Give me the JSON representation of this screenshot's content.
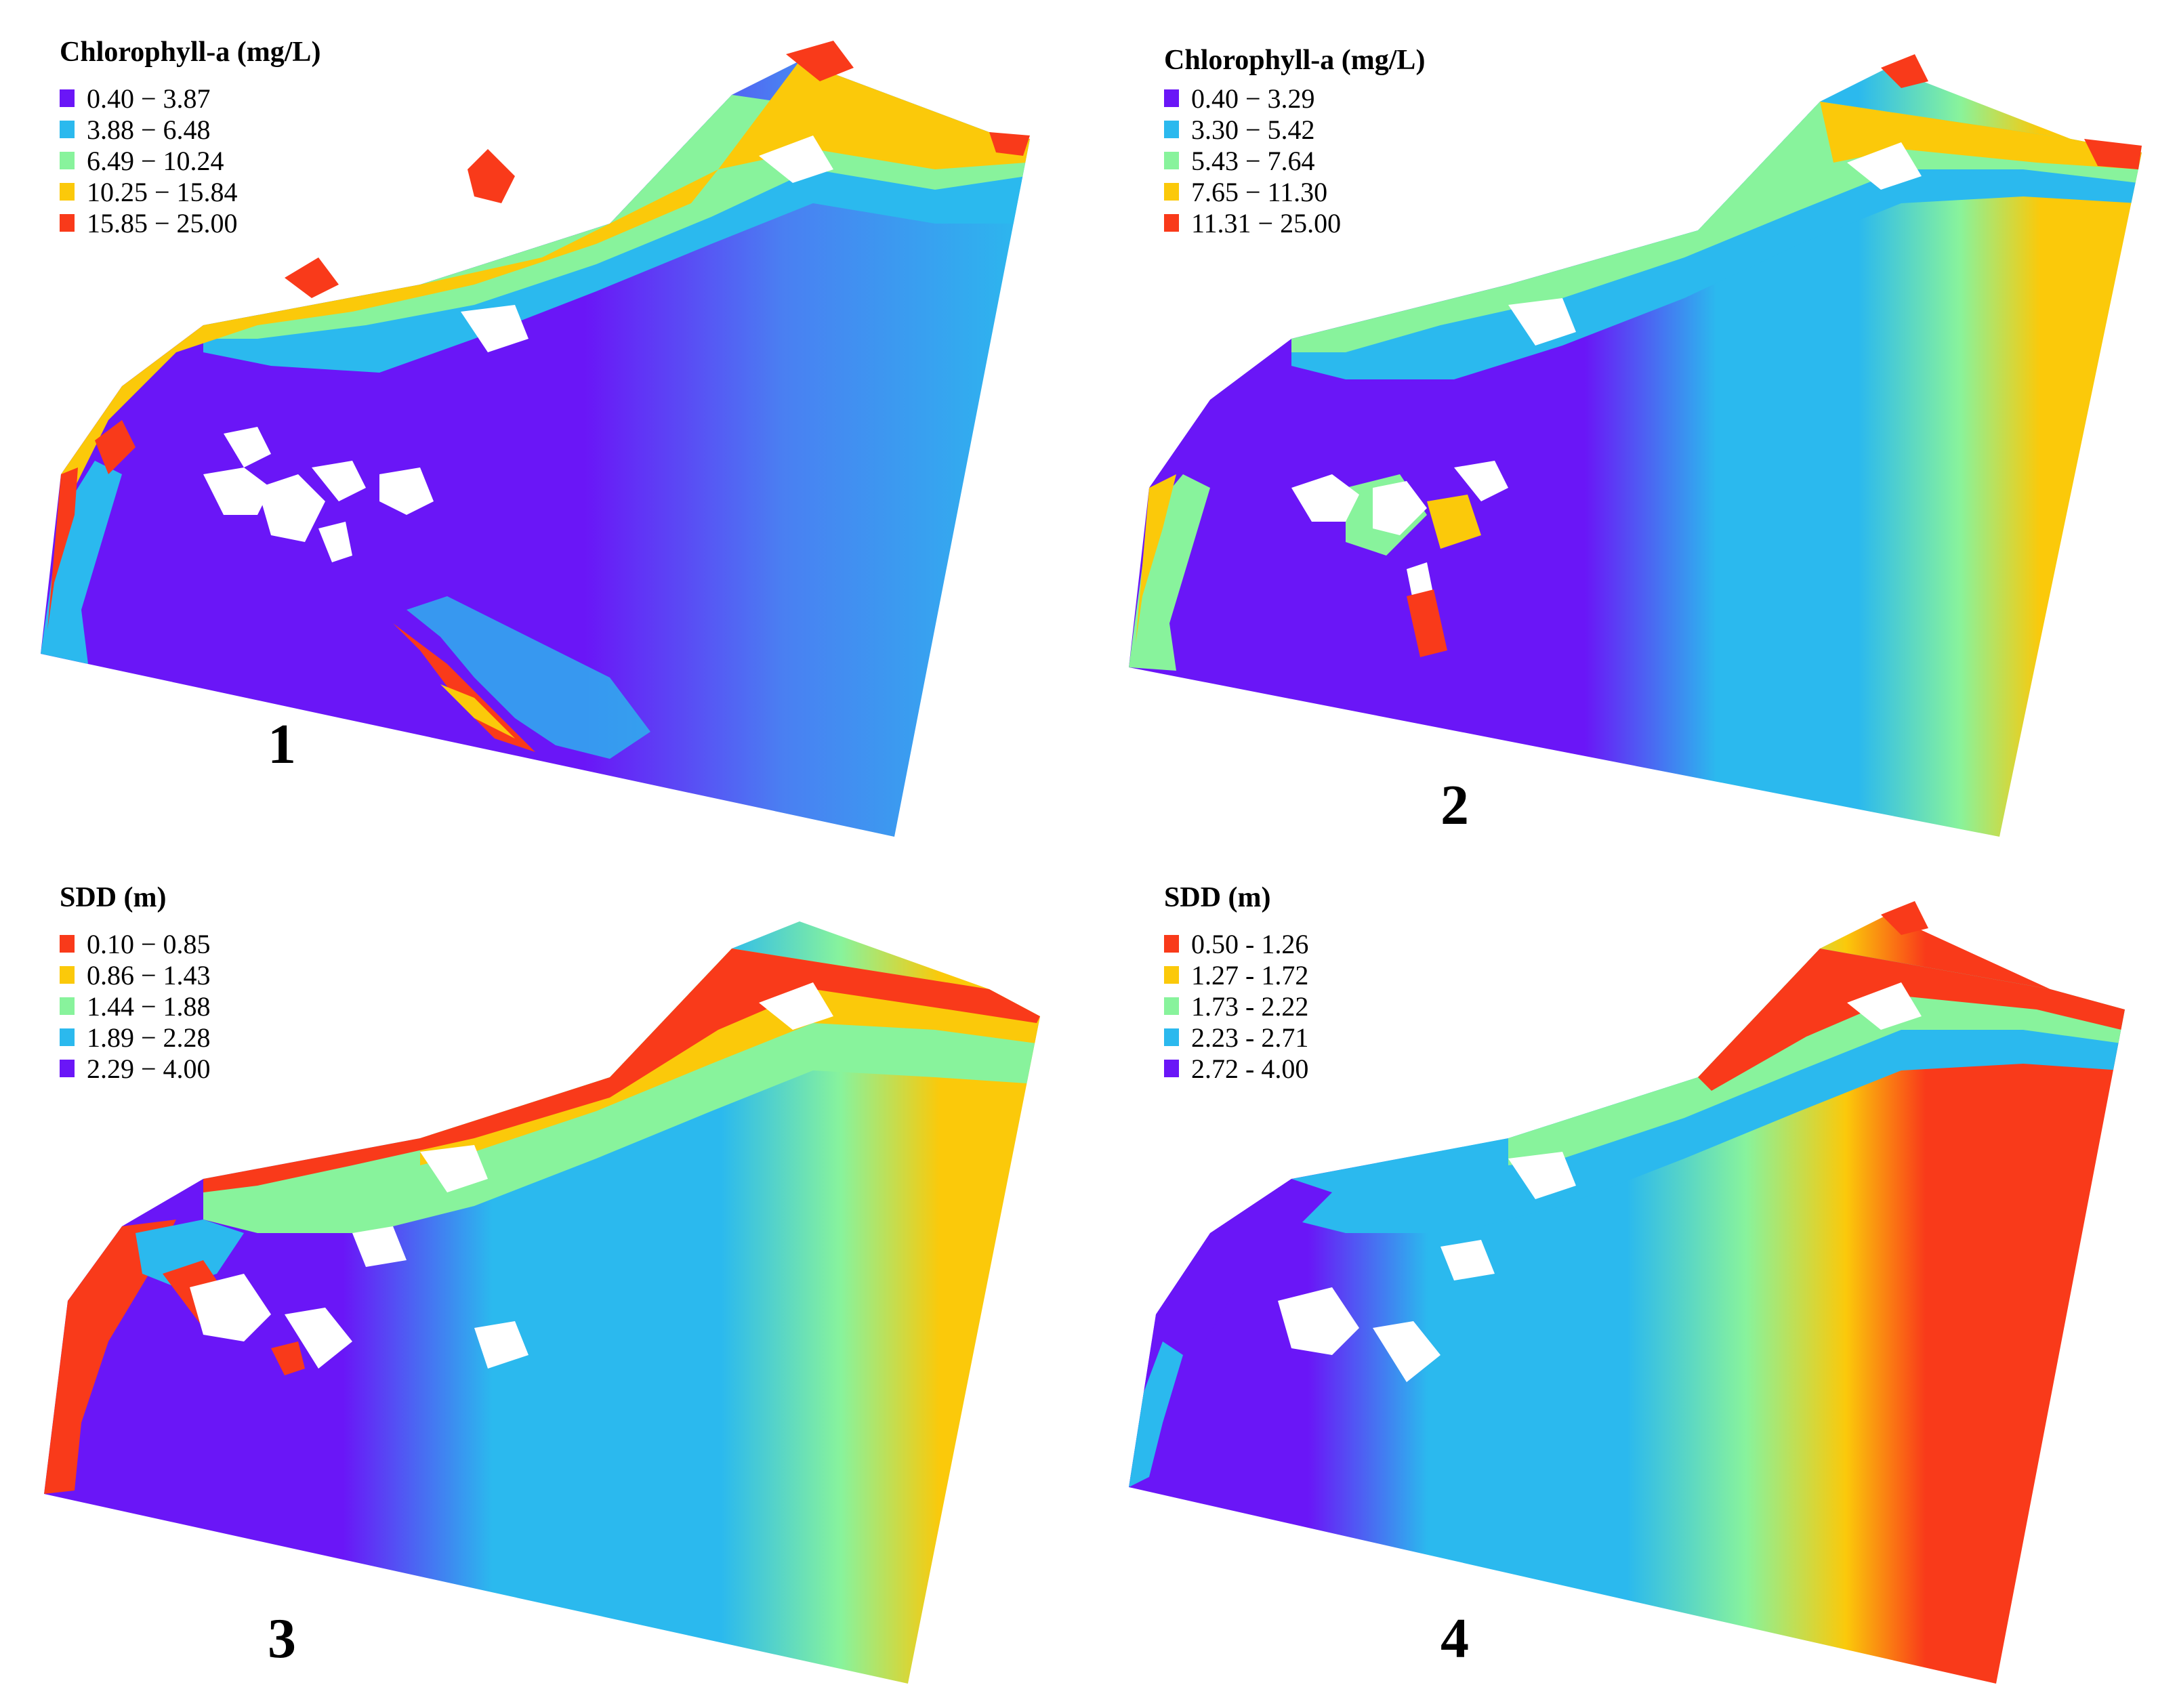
{
  "colors": {
    "purple": "#6a16f7",
    "blue": "#2bb9ee",
    "green": "#88f39c",
    "yellow": "#fbc90a",
    "red": "#f93a1a"
  },
  "panels": [
    {
      "label": "1",
      "legend": {
        "title": "Chlorophyll-a (mg/L)",
        "items": [
          {
            "label": "0.40 − 3.87",
            "color": "#6a16f7"
          },
          {
            "label": "3.88 − 6.48",
            "color": "#2bb9ee"
          },
          {
            "label": "6.49 − 10.24",
            "color": "#88f39c"
          },
          {
            "label": "10.25 − 15.84",
            "color": "#fbc90a"
          },
          {
            "label": "15.85 − 25.00",
            "color": "#f93a1a"
          }
        ]
      }
    },
    {
      "label": "2",
      "legend": {
        "title": "Chlorophyll-a (mg/L)",
        "items": [
          {
            "label": "0.40 − 3.29",
            "color": "#6a16f7"
          },
          {
            "label": "3.30 − 5.42",
            "color": "#2bb9ee"
          },
          {
            "label": "5.43 − 7.64",
            "color": "#88f39c"
          },
          {
            "label": "7.65 − 11.30",
            "color": "#fbc90a"
          },
          {
            "label": "11.31 − 25.00",
            "color": "#f93a1a"
          }
        ]
      }
    },
    {
      "label": "3",
      "legend": {
        "title": "SDD (m)",
        "items": [
          {
            "label": "0.10 − 0.85",
            "color": "#f93a1a"
          },
          {
            "label": "0.86 − 1.43",
            "color": "#fbc90a"
          },
          {
            "label": "1.44 − 1.88",
            "color": "#88f39c"
          },
          {
            "label": "1.89 − 2.28",
            "color": "#2bb9ee"
          },
          {
            "label": "2.29 − 4.00",
            "color": "#6a16f7"
          }
        ]
      }
    },
    {
      "label": "4",
      "legend": {
        "title": "SDD (m)",
        "items": [
          {
            "label": "0.50 - 1.26",
            "color": "#f93a1a"
          },
          {
            "label": "1.27 - 1.72",
            "color": "#fbc90a"
          },
          {
            "label": "1.73 - 2.22",
            "color": "#88f39c"
          },
          {
            "label": "2.23 - 2.71",
            "color": "#2bb9ee"
          },
          {
            "label": "2.72 - 4.00",
            "color": "#6a16f7"
          }
        ]
      }
    }
  ]
}
